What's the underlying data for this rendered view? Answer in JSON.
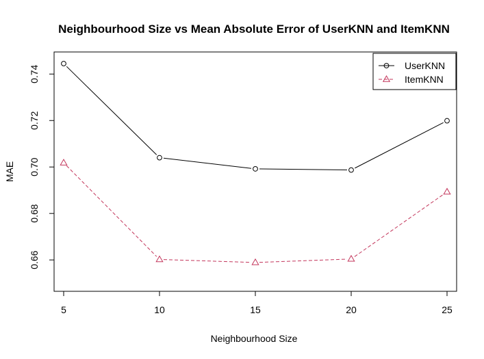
{
  "chart_data": {
    "type": "line",
    "title": "Neighbourhood Size vs Mean Absolute Error of UserKNN and ItemKNN",
    "xlabel": "Neighbourhood Size",
    "ylabel": "MAE",
    "x": [
      5,
      10,
      15,
      20,
      25
    ],
    "x_ticks": [
      "5",
      "10",
      "15",
      "20",
      "25"
    ],
    "y_ticks": [
      "0.66",
      "0.68",
      "0.70",
      "0.72",
      "0.74"
    ],
    "xlim": [
      4.5,
      25.5
    ],
    "ylim": [
      0.6465,
      0.7495
    ],
    "grid": false,
    "legend_position": "top-right",
    "series": [
      {
        "name": "UserKNN",
        "values": [
          0.7445,
          0.704,
          0.6992,
          0.6987,
          0.7199
        ],
        "color": "#000000",
        "marker": "circle",
        "line_style": "solid"
      },
      {
        "name": "ItemKNN",
        "values": [
          0.7018,
          0.6602,
          0.6589,
          0.6604,
          0.6893
        ],
        "color": "#c3355b",
        "marker": "triangle",
        "line_style": "dashed"
      }
    ]
  }
}
